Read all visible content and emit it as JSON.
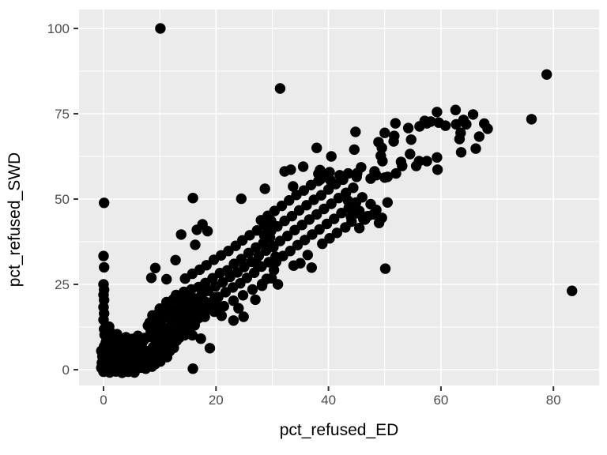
{
  "chart_data": {
    "type": "scatter",
    "title": "",
    "xlabel": "pct_refused_ED",
    "ylabel": "pct_refused_SWD",
    "x_ticks": [
      0,
      20,
      40,
      60,
      80
    ],
    "x_tick_labels": [
      "0",
      "20",
      "40",
      "60",
      "80"
    ],
    "x_minor_ticks": [
      10,
      30,
      50,
      70
    ],
    "y_ticks": [
      0,
      25,
      50,
      75,
      100
    ],
    "y_tick_labels": [
      "0",
      "25",
      "50",
      "75",
      "100"
    ],
    "y_minor_ticks": [
      12.5,
      37.5,
      62.5,
      87.5
    ],
    "xlim": [
      -4.4,
      88.1
    ],
    "ylim": [
      -4.6,
      105.6
    ],
    "grid": "on",
    "legend": "none",
    "panel_background_color": "#EBEBEB",
    "gridline_color": "#FFFFFF",
    "tick_mark_color": "#333333",
    "tick_label_color": "#4D4D4D",
    "point_color": "#000000",
    "points": [
      [
        10.1,
        100
      ],
      [
        31.4,
        82.4
      ],
      [
        78.8,
        86.5
      ],
      [
        76.1,
        73.4
      ],
      [
        83.3,
        23.1
      ],
      [
        50.1,
        29.6
      ],
      [
        0.1,
        48.9
      ],
      [
        15.9,
        0.3
      ],
      [
        0,
        33.3
      ],
      [
        0.1,
        30
      ],
      [
        0,
        25
      ],
      [
        0.1,
        23.4
      ],
      [
        0,
        21.9
      ],
      [
        0.1,
        20.4
      ],
      [
        0,
        18.3
      ],
      [
        0.1,
        16.5
      ],
      [
        0,
        14.6
      ],
      [
        13.8,
        39.6
      ],
      [
        16.3,
        36.6
      ],
      [
        16.6,
        41
      ],
      [
        17.6,
        42.6
      ],
      [
        18.5,
        40.6
      ],
      [
        12.8,
        32.1
      ],
      [
        9.2,
        29.8
      ],
      [
        8.5,
        26.9
      ],
      [
        11.2,
        26.5
      ],
      [
        15.9,
        50.3
      ],
      [
        24.5,
        50.1
      ],
      [
        28.7,
        53
      ],
      [
        18.9,
        6.3
      ],
      [
        17.3,
        9.1
      ],
      [
        15.8,
        10.1
      ],
      [
        23.1,
        14.4
      ],
      [
        24.9,
        15.5
      ],
      [
        0,
        0.3
      ],
      [
        0.4,
        1.8
      ],
      [
        0.2,
        3.4
      ],
      [
        0.6,
        5.1
      ],
      [
        0.1,
        6.8
      ],
      [
        0.5,
        8.4
      ],
      [
        1.2,
        0.6
      ],
      [
        1.5,
        2.2
      ],
      [
        1.1,
        4
      ],
      [
        1.6,
        5.7
      ],
      [
        1.3,
        7.5
      ],
      [
        1.8,
        9.2
      ],
      [
        2.3,
        0.2
      ],
      [
        2.6,
        1.9
      ],
      [
        2.2,
        3.6
      ],
      [
        2.7,
        5.3
      ],
      [
        2.4,
        7
      ],
      [
        2.9,
        8.8
      ],
      [
        3.4,
        0.8
      ],
      [
        3.7,
        2.5
      ],
      [
        3.3,
        4.2
      ],
      [
        3.8,
        6
      ],
      [
        3.5,
        7.7
      ],
      [
        4,
        9.5
      ],
      [
        4.5,
        0.4
      ],
      [
        4.8,
        2.1
      ],
      [
        4.4,
        3.8
      ],
      [
        4.9,
        5.6
      ],
      [
        4.6,
        7.3
      ],
      [
        5.1,
        9
      ],
      [
        5.6,
        1
      ],
      [
        5.9,
        2.7
      ],
      [
        5.5,
        4.5
      ],
      [
        6,
        6.2
      ],
      [
        5.7,
        8
      ],
      [
        6.2,
        9.7
      ],
      [
        6.7,
        0.6
      ],
      [
        7,
        2.3
      ],
      [
        6.6,
        4.1
      ],
      [
        7.1,
        5.8
      ],
      [
        6.8,
        7.6
      ],
      [
        7.3,
        9.3
      ],
      [
        7.8,
        1.2
      ],
      [
        8.1,
        3
      ],
      [
        7.7,
        4.7
      ],
      [
        0.8,
        0.1
      ],
      [
        1.9,
        1.1
      ],
      [
        3,
        1.5
      ],
      [
        4.2,
        1.3
      ],
      [
        5.3,
        0.2
      ],
      [
        6.4,
        1.6
      ],
      [
        7.5,
        0.3
      ],
      [
        0.3,
        2.6
      ],
      [
        1.4,
        3.1
      ],
      [
        2.5,
        2.8
      ],
      [
        3.6,
        3.3
      ],
      [
        4.7,
        3
      ],
      [
        5.8,
        3.5
      ],
      [
        6.9,
        3.2
      ],
      [
        0.7,
        4.4
      ],
      [
        1.8,
        4.9
      ],
      [
        2.9,
        4.6
      ],
      [
        4.1,
        5
      ],
      [
        5.2,
        5.2
      ],
      [
        6.3,
        5.4
      ],
      [
        7.4,
        5.5
      ],
      [
        0.9,
        6.1
      ],
      [
        2,
        6.5
      ],
      [
        3.1,
        6.3
      ],
      [
        4.3,
        6.7
      ],
      [
        5.4,
        6.9
      ],
      [
        6.5,
        7.1
      ],
      [
        0.4,
        7.9
      ],
      [
        1.6,
        8.3
      ],
      [
        2.8,
        8.1
      ],
      [
        -0.4,
        0.5
      ],
      [
        -0.3,
        2
      ],
      [
        -0.2,
        3.9
      ],
      [
        -0.4,
        5.5
      ],
      [
        0,
        -0.6
      ],
      [
        1.1,
        -0.8
      ],
      [
        2.2,
        -0.5
      ],
      [
        3.3,
        -0.9
      ],
      [
        4.4,
        -0.6
      ],
      [
        5.5,
        -0.8
      ],
      [
        0.2,
        10.2
      ],
      [
        1.3,
        10.8
      ],
      [
        2.4,
        10.4
      ],
      [
        0.1,
        11.9
      ],
      [
        1,
        12.6
      ],
      [
        3.9,
        8.6
      ],
      [
        5,
        8.9
      ],
      [
        6.1,
        9.9
      ],
      [
        7.2,
        8.7
      ],
      [
        8.3,
        9.6
      ],
      [
        8.6,
        0.9
      ],
      [
        9.2,
        1.7
      ],
      [
        8.9,
        3.4
      ],
      [
        9.5,
        5.2
      ],
      [
        8.8,
        6.6
      ],
      [
        9.4,
        8.2
      ],
      [
        10.1,
        2.4
      ],
      [
        10.6,
        4.3
      ],
      [
        10.3,
        6
      ],
      [
        10.8,
        7.8
      ],
      [
        9.9,
        9.9
      ],
      [
        11.3,
        3.7
      ],
      [
        11.8,
        5.5
      ],
      [
        11.5,
        7.2
      ],
      [
        12,
        9
      ],
      [
        11,
        10.7
      ],
      [
        12.5,
        6.4
      ],
      [
        13,
        8.5
      ],
      [
        12.7,
        10.2
      ],
      [
        13.5,
        9.4
      ],
      [
        8.4,
        11.3
      ],
      [
        9.6,
        11
      ],
      [
        10.4,
        12.1
      ],
      [
        11.6,
        12.4
      ],
      [
        12.8,
        12
      ],
      [
        7.9,
        12.9
      ],
      [
        9,
        13.3
      ],
      [
        10.2,
        14
      ],
      [
        13.9,
        11.2
      ],
      [
        14.4,
        10.1
      ],
      [
        8.2,
        13.8
      ],
      [
        9.3,
        14.6
      ],
      [
        10.7,
        15.3
      ],
      [
        11.9,
        14.9
      ],
      [
        13.2,
        13.7
      ],
      [
        14.1,
        12.9
      ],
      [
        14.8,
        11.8
      ],
      [
        15.3,
        13.4
      ],
      [
        8.7,
        15.9
      ],
      [
        9.8,
        16.6
      ],
      [
        11.1,
        16.2
      ],
      [
        12.3,
        15.8
      ],
      [
        13.6,
        15.1
      ],
      [
        14.9,
        14.4
      ],
      [
        15.7,
        15.6
      ],
      [
        16.2,
        13
      ],
      [
        10,
        17.9
      ],
      [
        11.4,
        18.5
      ],
      [
        12.6,
        17.6
      ],
      [
        13.8,
        17.1
      ],
      [
        15.1,
        17.3
      ],
      [
        16.5,
        16.8
      ],
      [
        17,
        15.2
      ],
      [
        17.7,
        16.1
      ],
      [
        11.2,
        19.8
      ],
      [
        12.4,
        20.6
      ],
      [
        13.7,
        19.4
      ],
      [
        15,
        19
      ],
      [
        16.3,
        18.8
      ],
      [
        17.5,
        18.2
      ],
      [
        18.2,
        17.4
      ],
      [
        18.8,
        18.9
      ],
      [
        12.9,
        21.9
      ],
      [
        14.2,
        21.4
      ],
      [
        15.5,
        20.9
      ],
      [
        16.8,
        20.3
      ],
      [
        18,
        20
      ],
      [
        19.3,
        19.6
      ],
      [
        19.8,
        21.2
      ],
      [
        20.4,
        18.5
      ],
      [
        14.3,
        22.8
      ],
      [
        15.6,
        23.5
      ],
      [
        16.9,
        24.2
      ],
      [
        18.1,
        25.4
      ],
      [
        19.4,
        26.8
      ],
      [
        20.7,
        28.3
      ],
      [
        22,
        29.1
      ],
      [
        23.2,
        31
      ],
      [
        24.5,
        32.4
      ],
      [
        25.8,
        34.2
      ],
      [
        27.1,
        35.8
      ],
      [
        28.4,
        37.1
      ],
      [
        29.6,
        38.7
      ],
      [
        14.8,
        19.6
      ],
      [
        16.1,
        20.9
      ],
      [
        17.4,
        21.8
      ],
      [
        18.6,
        23.1
      ],
      [
        19.9,
        24.4
      ],
      [
        21.2,
        25.6
      ],
      [
        22.5,
        27.2
      ],
      [
        23.8,
        28.5
      ],
      [
        25,
        30.1
      ],
      [
        26.3,
        31.6
      ],
      [
        27.6,
        33.4
      ],
      [
        28.9,
        34.9
      ],
      [
        30.1,
        36.2
      ],
      [
        15.3,
        15.9
      ],
      [
        16.6,
        17.2
      ],
      [
        17.9,
        18.4
      ],
      [
        19.1,
        19.7
      ],
      [
        20.4,
        21.3
      ],
      [
        21.7,
        22.7
      ],
      [
        23,
        24.1
      ],
      [
        24.3,
        25.3
      ],
      [
        25.5,
        26.9
      ],
      [
        26.8,
        28.4
      ],
      [
        28.1,
        30.2
      ],
      [
        29.4,
        31.5
      ],
      [
        30.6,
        33.1
      ],
      [
        14.5,
        26.7
      ],
      [
        15.8,
        28.1
      ],
      [
        17.1,
        29.3
      ],
      [
        18.3,
        30.6
      ],
      [
        19.6,
        32.2
      ],
      [
        20.9,
        33.5
      ],
      [
        22.2,
        34.8
      ],
      [
        23.5,
        36.3
      ],
      [
        24.7,
        37.9
      ],
      [
        26,
        39.4
      ],
      [
        27.3,
        40.8
      ],
      [
        28.6,
        42.3
      ],
      [
        29.8,
        43.6
      ],
      [
        16.3,
        14.1
      ],
      [
        18,
        15.5
      ],
      [
        19.7,
        17
      ],
      [
        21.4,
        18.6
      ],
      [
        23.1,
        20.2
      ],
      [
        24.8,
        21.8
      ],
      [
        26.5,
        23.5
      ],
      [
        28.2,
        25.1
      ],
      [
        29.9,
        26.8
      ],
      [
        21,
        15.8
      ],
      [
        24,
        18
      ],
      [
        27,
        20.5
      ],
      [
        37,
        29.9
      ],
      [
        31,
        25
      ],
      [
        28.2,
        24.6
      ],
      [
        27.2,
        31.2
      ],
      [
        29.5,
        31.5
      ],
      [
        30.3,
        29.2
      ],
      [
        29,
        26.6
      ],
      [
        30.4,
        46.5
      ],
      [
        31.7,
        48
      ],
      [
        33,
        49.6
      ],
      [
        34.3,
        51.2
      ],
      [
        35.6,
        52.5
      ],
      [
        36.9,
        54.1
      ],
      [
        38.2,
        55.3
      ],
      [
        39.5,
        56.9
      ],
      [
        28,
        43.8
      ],
      [
        29.2,
        45.1
      ],
      [
        30.9,
        42
      ],
      [
        32.2,
        43.6
      ],
      [
        33.5,
        45
      ],
      [
        34.8,
        46.7
      ],
      [
        36.1,
        48.2
      ],
      [
        37.4,
        49.8
      ],
      [
        38.7,
        51.1
      ],
      [
        40,
        52.8
      ],
      [
        41.3,
        54.4
      ],
      [
        42.6,
        55.7
      ],
      [
        28.6,
        39.3
      ],
      [
        29.8,
        40.7
      ],
      [
        31.4,
        37.7
      ],
      [
        32.7,
        39.2
      ],
      [
        34,
        40.9
      ],
      [
        35.3,
        42.4
      ],
      [
        36.6,
        44
      ],
      [
        37.9,
        45.5
      ],
      [
        39.2,
        47.1
      ],
      [
        40.5,
        48.6
      ],
      [
        41.8,
        50.3
      ],
      [
        43.1,
        51.8
      ],
      [
        44.4,
        53.3
      ],
      [
        30.2,
        35.9
      ],
      [
        31.9,
        33.3
      ],
      [
        33.2,
        34.8
      ],
      [
        34.5,
        36.5
      ],
      [
        35.8,
        38
      ],
      [
        37.1,
        39.6
      ],
      [
        38.4,
        41.1
      ],
      [
        39.7,
        42.7
      ],
      [
        41,
        44.2
      ],
      [
        42.3,
        45.9
      ],
      [
        43.6,
        47.4
      ],
      [
        44.9,
        49
      ],
      [
        30.7,
        31.6
      ],
      [
        33.8,
        30.5
      ],
      [
        36.3,
        33.6
      ],
      [
        38.9,
        36.9
      ],
      [
        41.5,
        40.1
      ],
      [
        44.1,
        43.4
      ],
      [
        35,
        31.2
      ],
      [
        40.2,
        38.5
      ],
      [
        43,
        41.7
      ],
      [
        43.5,
        49.5
      ],
      [
        46,
        50.5
      ],
      [
        47.5,
        48.5
      ],
      [
        50.5,
        49
      ],
      [
        44.8,
        47
      ],
      [
        48,
        45.5
      ],
      [
        46.5,
        44
      ],
      [
        49,
        43
      ],
      [
        45.5,
        41.5
      ],
      [
        44,
        44.8
      ],
      [
        45.5,
        46.5
      ],
      [
        47,
        45
      ],
      [
        48.5,
        46.8
      ],
      [
        46.2,
        44.2
      ],
      [
        44.9,
        45.8
      ],
      [
        49.5,
        44.5
      ],
      [
        42,
        57
      ],
      [
        43.5,
        57.5
      ],
      [
        45,
        56.5
      ],
      [
        47.5,
        56
      ],
      [
        48.5,
        57
      ],
      [
        50.5,
        56.5
      ],
      [
        52,
        57.5
      ],
      [
        35.5,
        59.5
      ],
      [
        38.5,
        58.5
      ],
      [
        51.9,
        72.2
      ],
      [
        44.8,
        69.7
      ],
      [
        50,
        69.4
      ],
      [
        51.7,
        68.5
      ],
      [
        54.2,
        70.8
      ],
      [
        56.2,
        71.3
      ],
      [
        57.1,
        72.9
      ],
      [
        54.7,
        67.4
      ],
      [
        51.6,
        66.9
      ],
      [
        48.9,
        66.7
      ],
      [
        49.5,
        65
      ],
      [
        54.5,
        63.2
      ],
      [
        52.9,
        60.9
      ],
      [
        53.1,
        59.7
      ],
      [
        49.3,
        62.7
      ],
      [
        49.6,
        61.1
      ],
      [
        59.3,
        75.5
      ],
      [
        62.6,
        76.1
      ],
      [
        65.7,
        74.8
      ],
      [
        58.2,
        72.7
      ],
      [
        59.6,
        72.4
      ],
      [
        60.8,
        71.5
      ],
      [
        62.7,
        71.9
      ],
      [
        64,
        73.2
      ],
      [
        64.5,
        71.9
      ],
      [
        67.7,
        72.1
      ],
      [
        63.5,
        69.4
      ],
      [
        63.3,
        67.6
      ],
      [
        63.6,
        63.7
      ],
      [
        57.5,
        72.2
      ],
      [
        59.3,
        62.2
      ],
      [
        59.4,
        58.6
      ],
      [
        57.5,
        61.1
      ],
      [
        45.8,
        59.3
      ],
      [
        45.1,
        57.6
      ],
      [
        48.2,
        58.1
      ],
      [
        50,
        56.3
      ],
      [
        56.1,
        61.1
      ],
      [
        55.6,
        59.7
      ],
      [
        37.9,
        65
      ],
      [
        40.5,
        62.5
      ],
      [
        32.2,
        58.1
      ],
      [
        33.3,
        58.6
      ],
      [
        33.7,
        53.7
      ],
      [
        38.2,
        57.4
      ],
      [
        38.6,
        55.8
      ],
      [
        40.2,
        57.9
      ],
      [
        40.3,
        55.6
      ],
      [
        40.6,
        54.4
      ],
      [
        44.6,
        64.5
      ],
      [
        66.8,
        68.3
      ],
      [
        68.3,
        70.6
      ],
      [
        66.2,
        64.8
      ]
    ]
  }
}
